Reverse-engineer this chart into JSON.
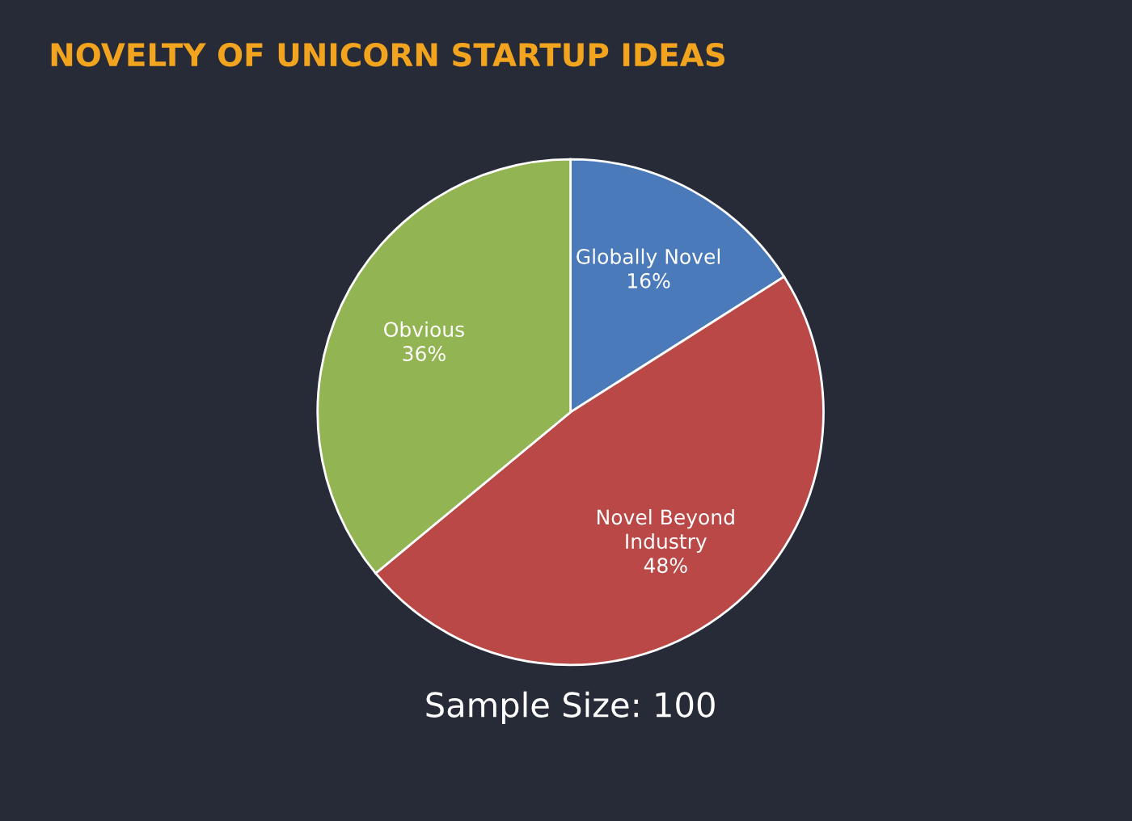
{
  "chart_data": {
    "type": "pie",
    "title": "NOVELTY OF UNICORN STARTUP IDEAS",
    "categories": [
      "Globally Novel",
      "Novel Beyond Industry",
      "Obvious"
    ],
    "values": [
      16,
      48,
      36
    ],
    "value_labels": [
      "16%",
      "48%",
      "36%"
    ],
    "colors": [
      "#4a7aba",
      "#b94847",
      "#93b452"
    ],
    "annotations": [
      "Sample Size: 100"
    ]
  }
}
